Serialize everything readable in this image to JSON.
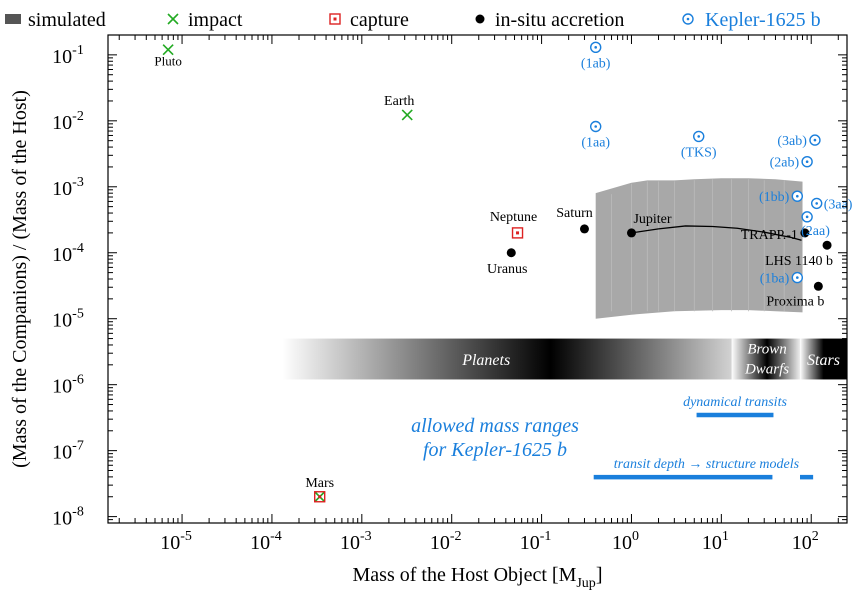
{
  "chart_data": {
    "type": "scatter",
    "title": "",
    "xlabel": "Mass of the Host Object [M",
    "xlabel_sub": "Jup",
    "xlabel_close": "]",
    "ylabel": "(Mass of the Companions) / (Mass of the Host)",
    "xscale": "log",
    "yscale": "log",
    "xlim": [
      1.5e-06,
      250
    ],
    "ylim": [
      8e-09,
      0.2
    ],
    "grid": false,
    "legend_position": "top",
    "x_ticks": [
      {
        "value": 1e-05,
        "base": "10",
        "exp": "-5"
      },
      {
        "value": 0.0001,
        "base": "10",
        "exp": "-4"
      },
      {
        "value": 0.001,
        "base": "10",
        "exp": "-3"
      },
      {
        "value": 0.01,
        "base": "10",
        "exp": "-2"
      },
      {
        "value": 0.1,
        "base": "10",
        "exp": "-1"
      },
      {
        "value": 1,
        "base": "10",
        "exp": "0"
      },
      {
        "value": 10,
        "base": "10",
        "exp": "1"
      },
      {
        "value": 100,
        "base": "10",
        "exp": "2"
      }
    ],
    "y_ticks": [
      {
        "value": 1e-08,
        "base": "10",
        "exp": "-8"
      },
      {
        "value": 1e-07,
        "base": "10",
        "exp": "-7"
      },
      {
        "value": 1e-06,
        "base": "10",
        "exp": "-6"
      },
      {
        "value": 1e-05,
        "base": "10",
        "exp": "-5"
      },
      {
        "value": 0.0001,
        "base": "10",
        "exp": "-4"
      },
      {
        "value": 0.001,
        "base": "10",
        "exp": "-3"
      },
      {
        "value": 0.01,
        "base": "10",
        "exp": "-2"
      },
      {
        "value": 0.1,
        "base": "10",
        "exp": "-1"
      }
    ],
    "legend": [
      {
        "label": "simulated",
        "marker": "gray-band",
        "color": "#999999"
      },
      {
        "label": "impact",
        "marker": "x",
        "color": "#22aa22"
      },
      {
        "label": "capture",
        "marker": "square",
        "color": "#dd2222"
      },
      {
        "label": "in-situ accretion",
        "marker": "dot",
        "color": "#000000"
      },
      {
        "label": "Kepler-1625 b",
        "marker": "circle-dot",
        "color": "#1a7fdc"
      }
    ],
    "colors": {
      "impact": "#22aa22",
      "capture": "#dd2222",
      "accretion": "#000000",
      "kepler": "#1a7fdc",
      "simulated": "#999999"
    },
    "points": {
      "impact": [
        {
          "label": "Pluto",
          "x": 7e-06,
          "y": 0.12
        },
        {
          "label": "Earth",
          "x": 0.0032,
          "y": 0.0123
        },
        {
          "label": "Mars",
          "x": 0.00034,
          "y": 2e-08
        }
      ],
      "capture": [
        {
          "label": "Neptune",
          "x": 0.054,
          "y": 0.0002
        },
        {
          "label": "Mars",
          "x": 0.00034,
          "y": 2e-08
        }
      ],
      "accretion": [
        {
          "label": "Uranus",
          "x": 0.046,
          "y": 0.0001
        },
        {
          "label": "Saturn",
          "x": 0.3,
          "y": 0.00023
        },
        {
          "label": "Jupiter",
          "x": 1.0,
          "y": 0.0002
        },
        {
          "label": "TRAPP.-1",
          "x": 85,
          "y": 0.0002
        },
        {
          "label": "LHS 1140 b",
          "x": 150,
          "y": 0.00013
        },
        {
          "label": "Proxima b",
          "x": 120,
          "y": 3.1e-05
        }
      ],
      "kepler": [
        {
          "label": "(1ab)",
          "x": 0.4,
          "y": 0.13
        },
        {
          "label": "(1aa)",
          "x": 0.4,
          "y": 0.0082
        },
        {
          "label": "(TKS)",
          "x": 5.6,
          "y": 0.0058
        },
        {
          "label": "(3ab)",
          "x": 110,
          "y": 0.0051
        },
        {
          "label": "(2ab)",
          "x": 90,
          "y": 0.0024
        },
        {
          "label": "(1bb)",
          "x": 70,
          "y": 0.00072
        },
        {
          "label": "(3aa)",
          "x": 115,
          "y": 0.00056
        },
        {
          "label": "(2aa)",
          "x": 90,
          "y": 0.00035
        },
        {
          "label": "(1ba)",
          "x": 70,
          "y": 4.2e-05
        }
      ]
    },
    "jupiter_curve": [
      {
        "x": 1.0,
        "y": 0.0002
      },
      {
        "x": 2.0,
        "y": 0.00023
      },
      {
        "x": 4.0,
        "y": 0.000255
      },
      {
        "x": 8.0,
        "y": 0.00025
      },
      {
        "x": 15.0,
        "y": 0.000235
      },
      {
        "x": 30.0,
        "y": 0.000205
      },
      {
        "x": 60.0,
        "y": 0.00017
      },
      {
        "x": 78.0,
        "y": 0.000155
      }
    ],
    "simulated_band": {
      "x_min": 0.4,
      "x_max": 80,
      "upper": [
        {
          "x": 0.4,
          "y": 0.0008
        },
        {
          "x": 1.0,
          "y": 0.00115
        },
        {
          "x": 1.5,
          "y": 0.00125
        },
        {
          "x": 3.0,
          "y": 0.00125
        },
        {
          "x": 5.0,
          "y": 0.0013
        },
        {
          "x": 10.0,
          "y": 0.00135
        },
        {
          "x": 20.0,
          "y": 0.00135
        },
        {
          "x": 40.0,
          "y": 0.0013
        },
        {
          "x": 80.0,
          "y": 0.0012
        }
      ],
      "lower": [
        {
          "x": 0.4,
          "y": 1e-05
        },
        {
          "x": 1.0,
          "y": 1.15e-05
        },
        {
          "x": 3.0,
          "y": 1.3e-05
        },
        {
          "x": 10.0,
          "y": 1.35e-05
        },
        {
          "x": 20.0,
          "y": 1.35e-05
        },
        {
          "x": 40.0,
          "y": 1.3e-05
        },
        {
          "x": 80.0,
          "y": 1.25e-05
        }
      ]
    },
    "mass_regimes": {
      "y_range": [
        1.2e-06,
        5e-06
      ],
      "segments": [
        {
          "label": "Planets",
          "x_from": 0.00013,
          "x_to": 35
        },
        {
          "label": "Brown Dwarfs",
          "x_from": 13,
          "x_to": 80
        },
        {
          "label": "Stars",
          "x_from": 75,
          "x_to": 250
        }
      ]
    },
    "allowed_ranges": {
      "title_line1": "allowed mass ranges",
      "title_line2": "for Kepler-1625 b",
      "ranges": [
        {
          "label": "dynamical transits",
          "segments": [
            {
              "x_from": 5.3,
              "x_to": 38
            }
          ],
          "y": 3.5e-07
        },
        {
          "label": "transit depth → structure models",
          "segments": [
            {
              "x_from": 0.38,
              "x_to": 37
            },
            {
              "x_from": 75,
              "x_to": 105
            }
          ],
          "y": 4e-08
        }
      ]
    }
  }
}
